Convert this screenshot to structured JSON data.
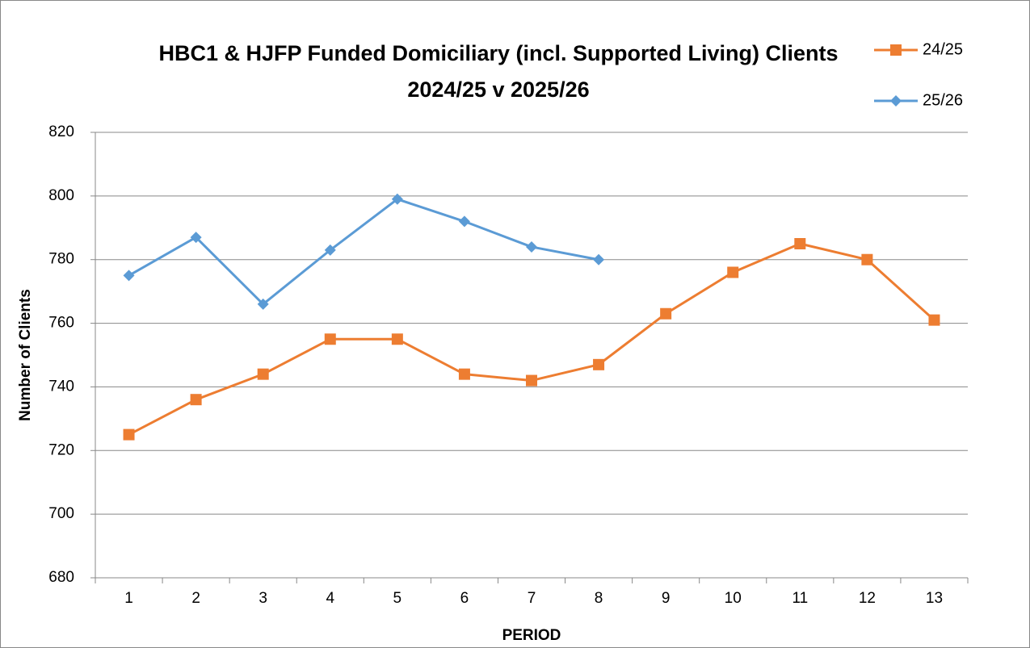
{
  "chart_data": {
    "type": "line",
    "title": [
      "HBC1 & HJFP Funded Domiciliary (incl. Supported Living) Clients",
      "2024/25 v 2025/26"
    ],
    "x_label": "PERIOD",
    "y_label": "Number of Clients",
    "categories": [
      "1",
      "2",
      "3",
      "4",
      "5",
      "6",
      "7",
      "8",
      "9",
      "10",
      "11",
      "12",
      "13"
    ],
    "series": [
      {
        "name": "24/25",
        "color": "#ed7d31",
        "marker": "square",
        "values": [
          725,
          736,
          744,
          755,
          755,
          744,
          742,
          747,
          763,
          776,
          785,
          780,
          761
        ]
      },
      {
        "name": "25/26",
        "color": "#5b9bd5",
        "marker": "diamond",
        "values": [
          775,
          787,
          766,
          783,
          799,
          792,
          784,
          780,
          null,
          null,
          null,
          null,
          null
        ]
      }
    ],
    "ylim": [
      680,
      820
    ],
    "yticks": [
      680,
      700,
      720,
      740,
      760,
      780,
      800,
      820
    ],
    "grid": true,
    "legend": "top-right"
  }
}
